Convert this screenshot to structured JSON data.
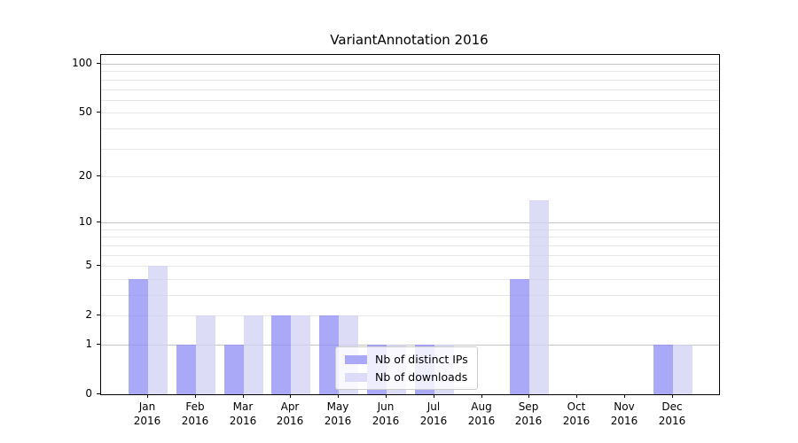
{
  "chart_data": {
    "type": "bar",
    "title": "VariantAnnotation 2016",
    "categories": [
      "Jan 2016",
      "Feb 2016",
      "Mar 2016",
      "Apr 2016",
      "May 2016",
      "Jun 2016",
      "Jul 2016",
      "Aug 2016",
      "Sep 2016",
      "Oct 2016",
      "Nov 2016",
      "Dec 2016"
    ],
    "series": [
      {
        "name": "Nb of distinct IPs",
        "color": "rgba(140,140,244,0.75)",
        "legend_color": "#a9a9f7",
        "values": [
          4,
          1,
          1,
          2,
          2,
          1,
          1,
          0,
          4,
          0,
          0,
          1
        ]
      },
      {
        "name": "Nb of downloads",
        "color": "rgba(208,208,244,0.75)",
        "legend_color": "#dcdcf8",
        "values": [
          5,
          2,
          2,
          2,
          2,
          1,
          1,
          0,
          14,
          0,
          0,
          1
        ]
      }
    ],
    "xlabel": "",
    "ylabel": "",
    "y_scale": "log10(1+x)",
    "y_ticks": [
      100,
      50,
      20,
      10,
      5,
      2,
      1,
      0
    ],
    "ylim": [
      0,
      113
    ],
    "grid": {
      "on": true,
      "major_at": [
        1,
        10,
        100
      ],
      "minor_at": [
        2,
        3,
        4,
        5,
        6,
        7,
        8,
        9,
        20,
        30,
        40,
        50,
        60,
        70,
        80,
        90
      ],
      "major_color": "#c6c6c6",
      "minor_color": "#e7e7e7"
    },
    "legend": {
      "position": "inside-bottom-center"
    },
    "spine_color": "#000000",
    "background": "#ffffff"
  }
}
